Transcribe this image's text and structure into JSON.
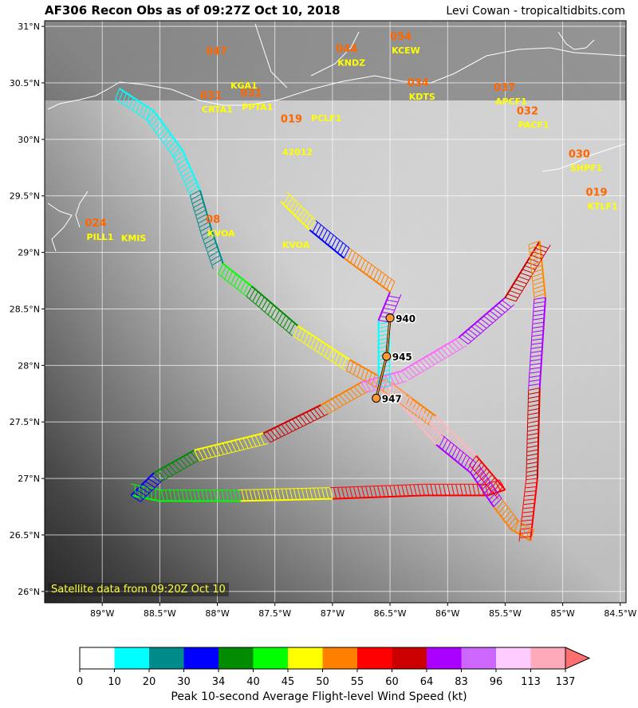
{
  "header": {
    "title": "AF306 Recon Obs as of 09:27Z Oct 10, 2018",
    "credit": "Levi Cowan - tropicaltidbits.com"
  },
  "satellite_note": "Satellite data from 09:20Z Oct 10",
  "colors": {
    "station_number": "#ff6600",
    "station_id": "#ffff00",
    "coast": "#ffffff",
    "background_dark": "#2a2a2a",
    "background_light": "#d8d8d8"
  },
  "chart_data": {
    "type": "scatter",
    "title": "AF306 Recon Obs as of 09:27Z Oct 10, 2018",
    "xlim": [
      -89.5,
      -84.45
    ],
    "ylim": [
      25.9,
      31.05
    ],
    "x_ticks": [
      {
        "value": -89,
        "label": "89°W"
      },
      {
        "value": -88.5,
        "label": "88.5°W"
      },
      {
        "value": -88,
        "label": "88°W"
      },
      {
        "value": -87.5,
        "label": "87.5°W"
      },
      {
        "value": -87,
        "label": "87°W"
      },
      {
        "value": -86.5,
        "label": "86.5°W"
      },
      {
        "value": -86,
        "label": "86°W"
      },
      {
        "value": -85.5,
        "label": "85.5°W"
      },
      {
        "value": -85,
        "label": "85°W"
      },
      {
        "value": -84.5,
        "label": "84.5°W"
      }
    ],
    "y_ticks": [
      {
        "value": 26,
        "label": "26°N"
      },
      {
        "value": 26.5,
        "label": "26.5°N"
      },
      {
        "value": 27,
        "label": "27°N"
      },
      {
        "value": 27.5,
        "label": "27.5°N"
      },
      {
        "value": 28,
        "label": "28°N"
      },
      {
        "value": 28.5,
        "label": "28.5°N"
      },
      {
        "value": 29,
        "label": "29°N"
      },
      {
        "value": 29.5,
        "label": "29.5°N"
      },
      {
        "value": 30,
        "label": "30°N"
      },
      {
        "value": 30.5,
        "label": "30.5°N"
      },
      {
        "value": 31,
        "label": "31°N"
      }
    ],
    "grid": true,
    "flight_track": [
      [
        -88.85,
        30.45
      ],
      [
        -88.55,
        30.25
      ],
      [
        -88.3,
        29.9
      ],
      [
        -88.15,
        29.55
      ],
      [
        -88.05,
        29.2
      ],
      [
        -87.95,
        28.9
      ],
      [
        -87.7,
        28.7
      ],
      [
        -87.3,
        28.35
      ],
      [
        -86.85,
        28.05
      ],
      [
        -86.5,
        27.85
      ],
      [
        -86.1,
        27.55
      ],
      [
        -85.75,
        27.2
      ],
      [
        -85.5,
        26.9
      ],
      [
        -85.65,
        26.85
      ],
      [
        -86.2,
        26.85
      ],
      [
        -87.0,
        26.82
      ],
      [
        -87.8,
        26.8
      ],
      [
        -88.5,
        26.8
      ],
      [
        -88.75,
        26.85
      ],
      [
        -88.55,
        27.05
      ],
      [
        -88.2,
        27.25
      ],
      [
        -87.6,
        27.4
      ],
      [
        -87.1,
        27.65
      ],
      [
        -86.75,
        27.85
      ],
      [
        -86.4,
        27.95
      ],
      [
        -85.9,
        28.25
      ],
      [
        -85.5,
        28.6
      ],
      [
        -85.2,
        29.1
      ],
      [
        -85.15,
        28.6
      ],
      [
        -85.2,
        27.8
      ],
      [
        -85.22,
        27.0
      ],
      [
        -85.28,
        26.45
      ],
      [
        -85.45,
        26.55
      ],
      [
        -85.6,
        26.75
      ],
      [
        -85.8,
        27.05
      ],
      [
        -86.1,
        27.3
      ],
      [
        -86.4,
        27.65
      ],
      [
        -86.6,
        27.8
      ],
      [
        -86.6,
        28.4
      ],
      [
        -86.5,
        28.65
      ],
      [
        -86.9,
        28.95
      ],
      [
        -87.2,
        29.2
      ],
      [
        -87.45,
        29.45
      ]
    ],
    "wind_segments": [
      {
        "from": 0,
        "to": 3,
        "color": "#00ffff"
      },
      {
        "from": 3,
        "to": 5,
        "color": "#008b8b"
      },
      {
        "from": 5,
        "to": 6,
        "color": "#00ff00"
      },
      {
        "from": 6,
        "to": 7,
        "color": "#008b00"
      },
      {
        "from": 7,
        "to": 8,
        "color": "#ffff00"
      },
      {
        "from": 8,
        "to": 10,
        "color": "#ff7f00"
      },
      {
        "from": 10,
        "to": 11,
        "color": "#ffb6c1"
      },
      {
        "from": 11,
        "to": 13,
        "color": "#ff0000"
      },
      {
        "from": 13,
        "to": 15,
        "color": "#ff0000"
      },
      {
        "from": 15,
        "to": 16,
        "color": "#ffff00"
      },
      {
        "from": 16,
        "to": 18,
        "color": "#00ff00"
      },
      {
        "from": 18,
        "to": 19,
        "color": "#0000ff"
      },
      {
        "from": 19,
        "to": 20,
        "color": "#008b00"
      },
      {
        "from": 20,
        "to": 21,
        "color": "#ffff00"
      },
      {
        "from": 21,
        "to": 22,
        "color": "#cc0000"
      },
      {
        "from": 22,
        "to": 23,
        "color": "#ff7f00"
      },
      {
        "from": 23,
        "to": 25,
        "color": "#ff66ff"
      },
      {
        "from": 25,
        "to": 26,
        "color": "#aa00ff"
      },
      {
        "from": 26,
        "to": 27,
        "color": "#cc0000"
      },
      {
        "from": 27,
        "to": 28,
        "color": "#ff8800"
      },
      {
        "from": 28,
        "to": 29,
        "color": "#aa00ff"
      },
      {
        "from": 29,
        "to": 30,
        "color": "#cc0000"
      },
      {
        "from": 30,
        "to": 31,
        "color": "#ff0000"
      },
      {
        "from": 31,
        "to": 33,
        "color": "#ff7f00"
      },
      {
        "from": 33,
        "to": 35,
        "color": "#aa00ff"
      },
      {
        "from": 35,
        "to": 37,
        "color": "#ffb6c1"
      },
      {
        "from": 37,
        "to": 38,
        "color": "#00ffff"
      },
      {
        "from": 38,
        "to": 39,
        "color": "#aa00ff"
      },
      {
        "from": 39,
        "to": 40,
        "color": "#ff7f00"
      },
      {
        "from": 40,
        "to": 41,
        "color": "#0000ff"
      },
      {
        "from": 41,
        "to": 42,
        "color": "#ffff00"
      }
    ],
    "center_fixes": [
      {
        "lon": -86.5,
        "lat": 28.42,
        "pressure": "940"
      },
      {
        "lon": -86.53,
        "lat": 28.08,
        "pressure": "945"
      },
      {
        "lon": -86.62,
        "lat": 27.71,
        "pressure": "947"
      }
    ],
    "stations": [
      {
        "lon": -88.1,
        "lat": 30.75,
        "value": "047",
        "id": ""
      },
      {
        "lon": -87.9,
        "lat": 30.57,
        "value": "",
        "id": "KGA1"
      },
      {
        "lon": -88.15,
        "lat": 30.36,
        "value": "031",
        "id": "CRTA1"
      },
      {
        "lon": -87.8,
        "lat": 30.38,
        "value": "031",
        "id": "PPTA1"
      },
      {
        "lon": -87.2,
        "lat": 30.28,
        "value": "",
        "id": "PCLF1"
      },
      {
        "lon": -87.45,
        "lat": 30.15,
        "value": "019",
        "id": ""
      },
      {
        "lon": -87.45,
        "lat": 29.98,
        "value": "",
        "id": "42012"
      },
      {
        "lon": -86.97,
        "lat": 30.77,
        "value": "044",
        "id": "KNDZ"
      },
      {
        "lon": -86.5,
        "lat": 30.88,
        "value": "054",
        "id": "KCEW"
      },
      {
        "lon": -86.35,
        "lat": 30.47,
        "value": "034",
        "id": "KDTS"
      },
      {
        "lon": -85.6,
        "lat": 30.43,
        "value": "037",
        "id": "APCF1"
      },
      {
        "lon": -85.4,
        "lat": 30.22,
        "value": "032",
        "id": "PACF1"
      },
      {
        "lon": -84.95,
        "lat": 29.84,
        "value": "030",
        "id": "SHPF1"
      },
      {
        "lon": -84.8,
        "lat": 29.5,
        "value": "019",
        "id": "KTLF1"
      },
      {
        "lon": -89.15,
        "lat": 29.23,
        "value": "024",
        "id": "PILL1"
      },
      {
        "lon": -88.85,
        "lat": 29.22,
        "value": "",
        "id": "KMIS"
      },
      {
        "lon": -88.1,
        "lat": 29.26,
        "value": "08",
        "id": "KVOA"
      },
      {
        "lon": -87.45,
        "lat": 29.16,
        "value": "",
        "id": "KVOA"
      }
    ],
    "colorbar": {
      "label": "Peak 10-second Average Flight-level Wind Speed (kt)",
      "ticks": [
        "0",
        "10",
        "20",
        "30",
        "34",
        "40",
        "45",
        "50",
        "55",
        "60",
        "64",
        "83",
        "96",
        "113",
        "137"
      ],
      "colors": [
        "#ffffff",
        "#00ffff",
        "#008b8b",
        "#0000ff",
        "#008b00",
        "#00ff00",
        "#ffff00",
        "#ff7f00",
        "#ff0000",
        "#cc0000",
        "#aa00ff",
        "#cc66ff",
        "#ffccff",
        "#ffaabb"
      ],
      "extend_color": "#ff6f6f"
    }
  }
}
